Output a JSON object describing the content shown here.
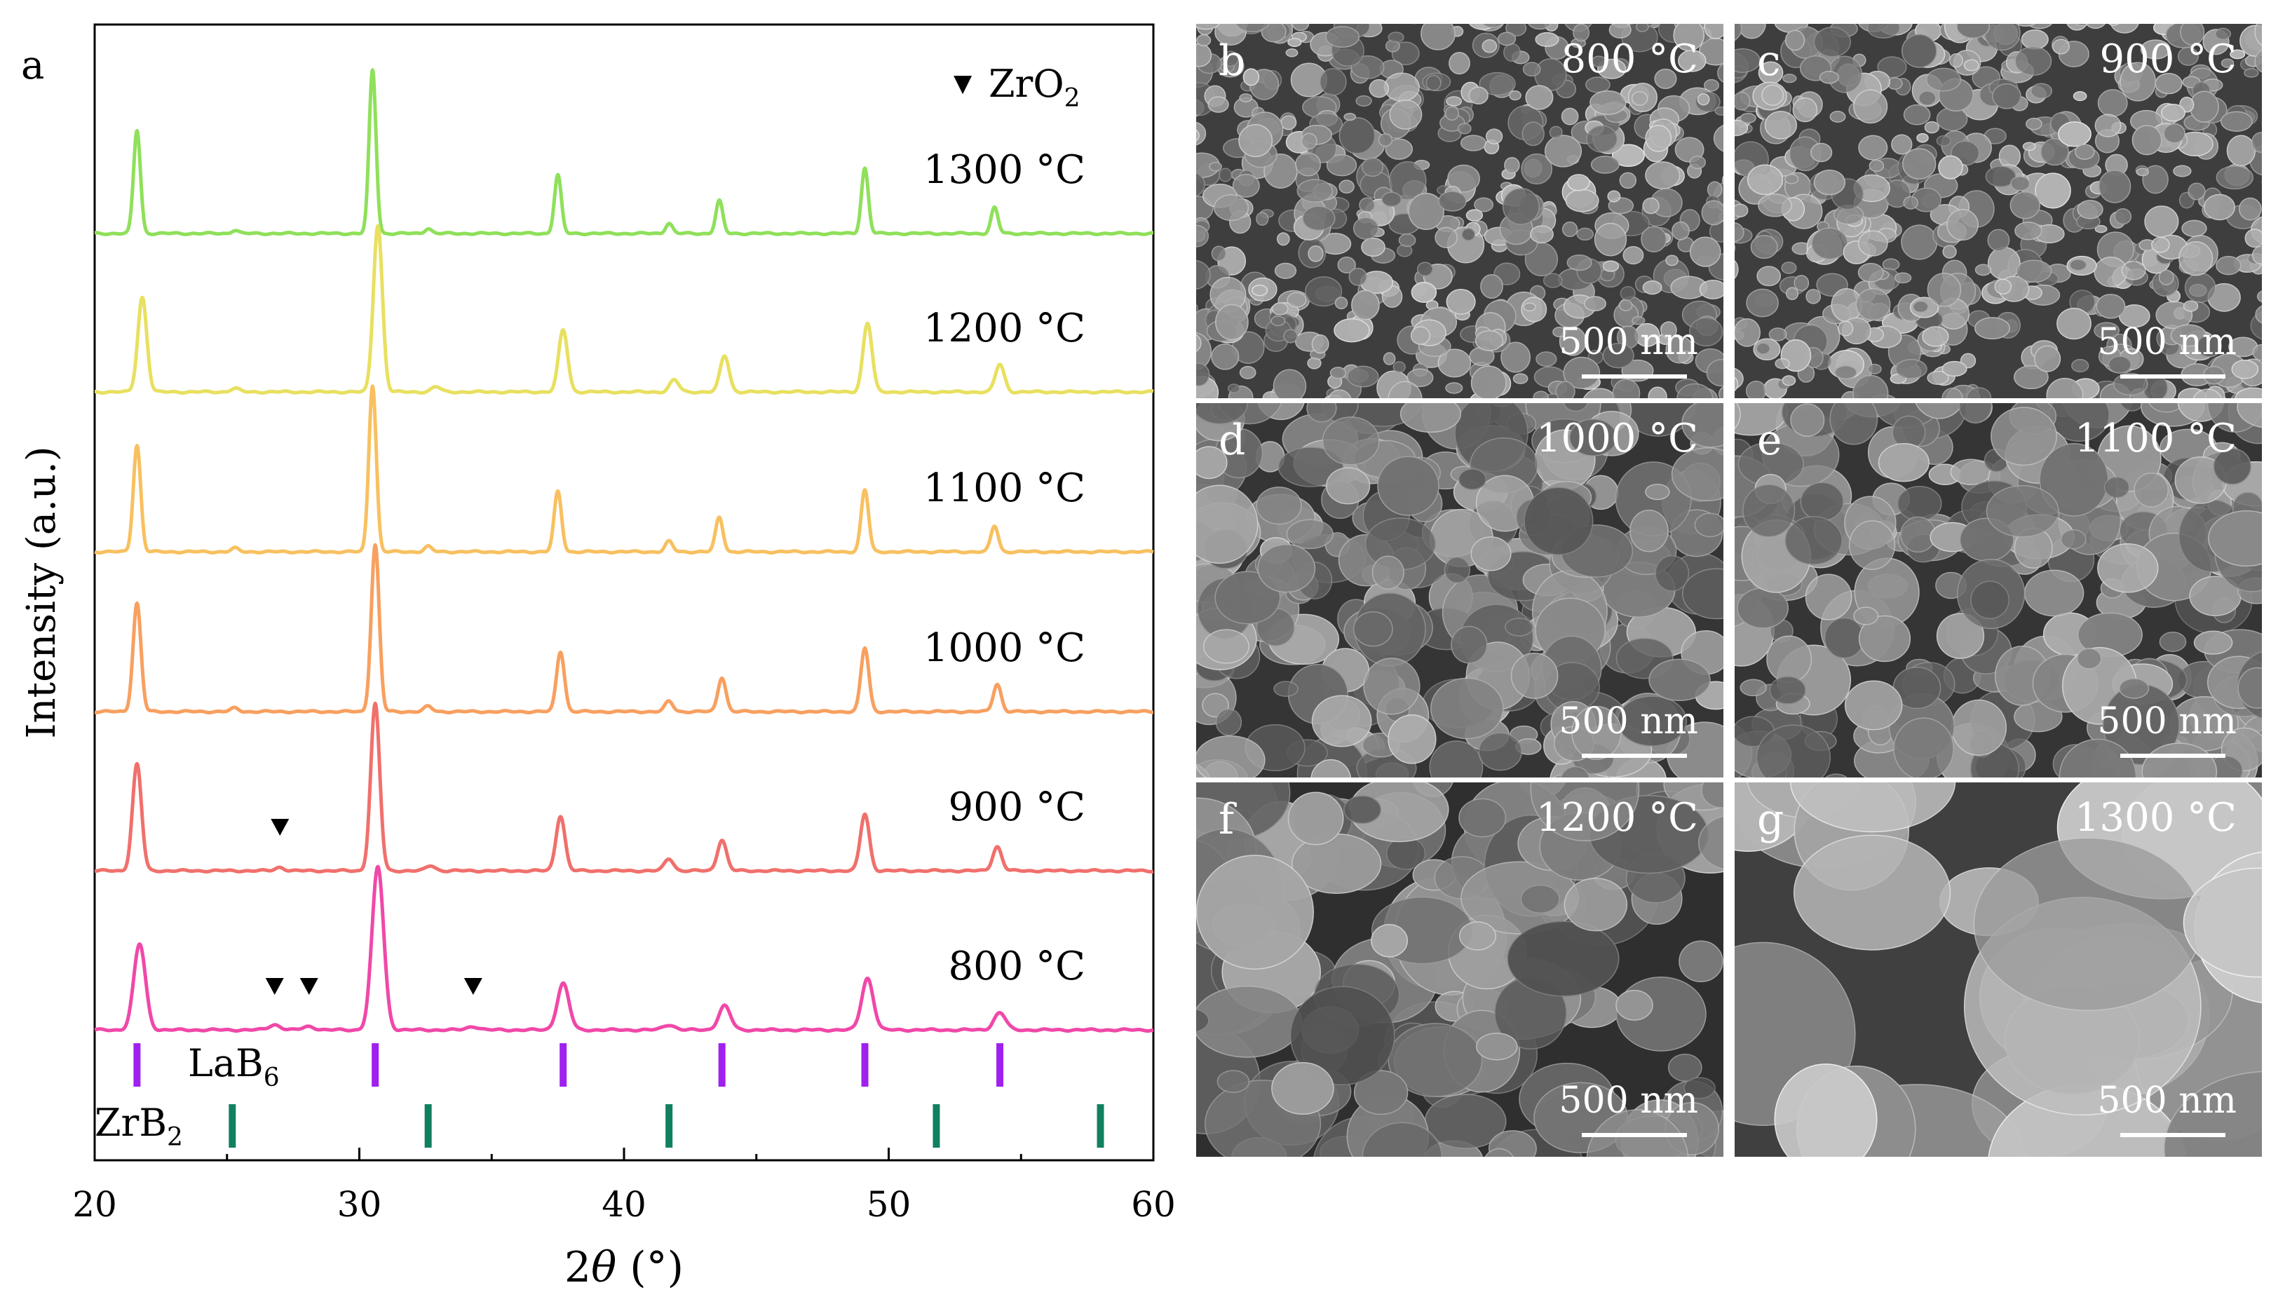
{
  "panel_a": {
    "label": "a",
    "legend": {
      "marker": "▼",
      "text": "ZrO",
      "sub": "2"
    },
    "y_axis_label": "Intensity (a.u.)",
    "x_axis_label": {
      "main": "2",
      "theta": "θ",
      "unit": " (°)"
    }
  },
  "chart_data": {
    "type": "line",
    "title": "",
    "xlabel": "2θ (°)",
    "ylabel": "Intensity (a.u.)",
    "xlim": [
      20,
      60
    ],
    "xticks": [
      20,
      30,
      40,
      50,
      60
    ],
    "series": [
      {
        "name": "1300 °C",
        "color": "#8fe05a",
        "peak_shift": -0.15,
        "width": 0.13,
        "peaks": [
          [
            21.6,
            0.6
          ],
          [
            30.5,
            0.95
          ],
          [
            37.5,
            0.34
          ],
          [
            41.7,
            0.06
          ],
          [
            43.6,
            0.19
          ],
          [
            49.1,
            0.38
          ],
          [
            54.0,
            0.15
          ],
          [
            25.3,
            0.02
          ],
          [
            32.6,
            0.03
          ]
        ]
      },
      {
        "name": "1200 °C",
        "color": "#e8e060",
        "peak_shift": 0.05,
        "width": 0.17,
        "peaks": [
          [
            21.8,
            0.55
          ],
          [
            30.7,
            0.97
          ],
          [
            37.7,
            0.36
          ],
          [
            41.9,
            0.07
          ],
          [
            43.8,
            0.21
          ],
          [
            49.2,
            0.4
          ],
          [
            54.2,
            0.16
          ],
          [
            25.3,
            0.02
          ],
          [
            32.9,
            0.03
          ]
        ]
      },
      {
        "name": "1100 °C",
        "color": "#f8c060",
        "peak_shift": -0.15,
        "width": 0.14,
        "peaks": [
          [
            21.6,
            0.62
          ],
          [
            30.5,
            0.97
          ],
          [
            37.5,
            0.35
          ],
          [
            41.7,
            0.06
          ],
          [
            43.6,
            0.2
          ],
          [
            49.1,
            0.36
          ],
          [
            54.0,
            0.15
          ],
          [
            25.3,
            0.02
          ],
          [
            32.6,
            0.03
          ]
        ]
      },
      {
        "name": "1000 °C",
        "color": "#f8a060",
        "peak_shift": -0.1,
        "width": 0.15,
        "peaks": [
          [
            21.6,
            0.63
          ],
          [
            30.6,
            0.97
          ],
          [
            37.6,
            0.35
          ],
          [
            41.7,
            0.06
          ],
          [
            43.7,
            0.2
          ],
          [
            49.1,
            0.37
          ],
          [
            54.1,
            0.16
          ],
          [
            25.3,
            0.02
          ],
          [
            32.6,
            0.03
          ]
        ]
      },
      {
        "name": "900 °C",
        "color": "#f0706c",
        "peak_shift": -0.05,
        "width": 0.17,
        "peaks": [
          [
            21.6,
            0.62
          ],
          [
            30.6,
            0.97
          ],
          [
            37.6,
            0.32
          ],
          [
            41.7,
            0.07
          ],
          [
            43.7,
            0.18
          ],
          [
            49.1,
            0.33
          ],
          [
            54.1,
            0.14
          ],
          [
            27.0,
            0.02
          ],
          [
            32.7,
            0.03
          ]
        ]
      },
      {
        "name": "800 °C",
        "color": "#f048a8",
        "peak_shift": 0.1,
        "width": 0.22,
        "peaks": [
          [
            21.7,
            0.5
          ],
          [
            30.7,
            0.95
          ],
          [
            37.7,
            0.27
          ],
          [
            41.7,
            0.03
          ],
          [
            43.8,
            0.14
          ],
          [
            49.2,
            0.3
          ],
          [
            54.2,
            0.1
          ],
          [
            26.8,
            0.03
          ],
          [
            28.1,
            0.02
          ],
          [
            34.3,
            0.02
          ]
        ]
      }
    ],
    "zro2_markers": [
      {
        "series": "900 °C",
        "x": 27.0
      },
      {
        "series": "800 °C",
        "x": 26.8
      },
      {
        "series": "800 °C",
        "x": 28.1
      },
      {
        "series": "800 °C",
        "x": 34.3
      }
    ],
    "references": [
      {
        "name": "LaB",
        "sub": "6",
        "color": "#a020f0",
        "positions": [
          21.6,
          30.6,
          37.7,
          43.7,
          49.1,
          54.2
        ]
      },
      {
        "name": "ZrB",
        "sub": "2",
        "color": "#108060",
        "positions": [
          25.2,
          32.6,
          41.7,
          51.8,
          58.0
        ]
      }
    ]
  },
  "sem_panels": [
    {
      "letter": "b",
      "temperature": "800 °C",
      "scale": "500 nm",
      "texture": "fine"
    },
    {
      "letter": "c",
      "temperature": "900 °C",
      "scale": "500 nm",
      "texture": "fine"
    },
    {
      "letter": "d",
      "temperature": "1000 °C",
      "scale": "500 nm",
      "texture": "medium"
    },
    {
      "letter": "e",
      "temperature": "1100 °C",
      "scale": "500 nm",
      "texture": "medium"
    },
    {
      "letter": "f",
      "temperature": "1200 °C",
      "scale": "500 nm",
      "texture": "coarse"
    },
    {
      "letter": "g",
      "temperature": "1300 °C",
      "scale": "500 nm",
      "texture": "smooth"
    }
  ]
}
